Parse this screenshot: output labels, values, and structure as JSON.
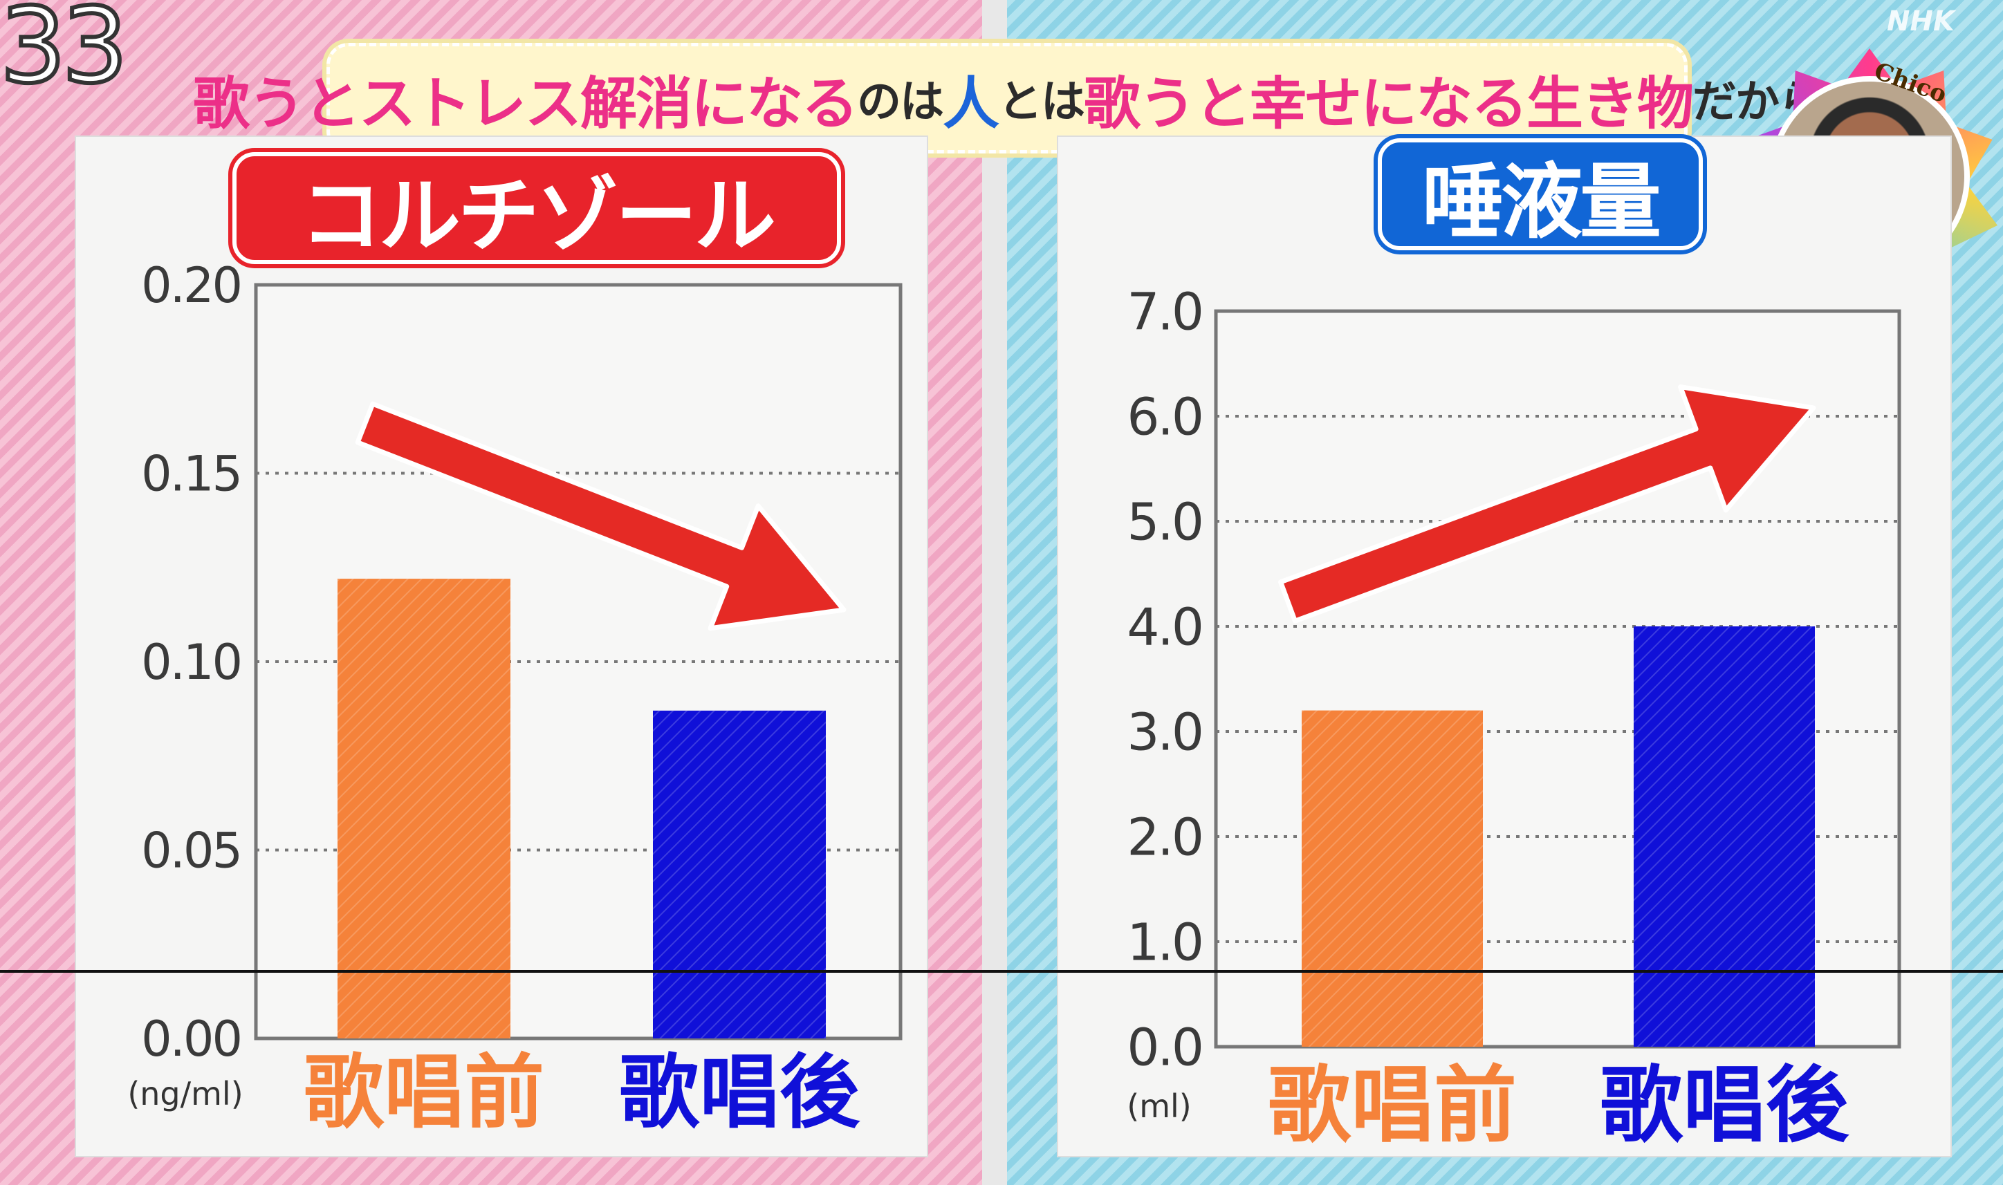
{
  "overlay": {
    "counter": "33",
    "logo": "NHK",
    "banner": {
      "segments": [
        {
          "text": "歌うとストレス解消になる",
          "style": "pink"
        },
        {
          "text": "のは",
          "style": "small"
        },
        {
          "text": "人",
          "style": "blue"
        },
        {
          "text": "とは",
          "style": "small"
        },
        {
          "text": "歌うと幸せになる生き物",
          "style": "pink"
        },
        {
          "text": "だから",
          "style": "small"
        }
      ]
    },
    "avatar_label": "Chico"
  },
  "colors": {
    "before_bar": "#f5823a",
    "after_bar": "#1010d8",
    "arrow": "#e52a25",
    "left_title_bg": "#e8232b",
    "right_title_bg": "#1166d6"
  },
  "chart_data": [
    {
      "type": "bar",
      "title": "コルチゾール",
      "categories": [
        "歌唱前",
        "歌唱後"
      ],
      "values": [
        0.122,
        0.087
      ],
      "ylim": [
        0.0,
        0.2
      ],
      "yticks": [
        "0.00",
        "0.05",
        "0.10",
        "0.15",
        "0.20"
      ],
      "ytick_values": [
        0.0,
        0.05,
        0.1,
        0.15,
        0.2
      ],
      "unit": "(ng/ml)",
      "grid": "dotted",
      "trend": "down"
    },
    {
      "type": "bar",
      "title": "唾液量",
      "categories": [
        "歌唱前",
        "歌唱後"
      ],
      "values": [
        3.2,
        4.0
      ],
      "ylim": [
        0.0,
        7.0
      ],
      "yticks": [
        "0.0",
        "1.0",
        "2.0",
        "3.0",
        "4.0",
        "5.0",
        "6.0",
        "7.0"
      ],
      "ytick_values": [
        0.0,
        1.0,
        2.0,
        3.0,
        4.0,
        5.0,
        6.0,
        7.0
      ],
      "unit": "(ml)",
      "grid": "dotted",
      "trend": "up"
    }
  ]
}
